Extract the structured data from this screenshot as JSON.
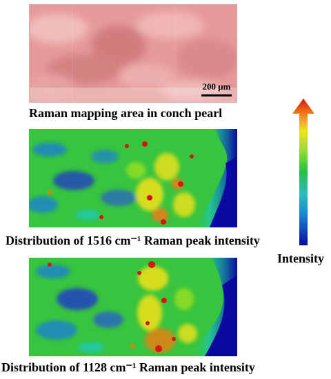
{
  "captions": {
    "pearl": "Raman mapping area in conch pearl",
    "map1516": "Distribution of 1516 cm⁻¹ Raman peak intensity",
    "map1128": "Distribution of 1128 cm⁻¹ Raman peak intensity"
  },
  "scale_bar": {
    "label": "200 μm"
  },
  "legend": {
    "label": "Intensity",
    "gradient_colors": [
      "#0a0aa0",
      "#1a7fd0",
      "#18c8c0",
      "#22c24a",
      "#9ae020",
      "#f2e21a",
      "#f07a14",
      "#d81410"
    ]
  },
  "photo_colors": {
    "base": "#e59a99",
    "light": "#f4c7c4",
    "dark": "#c96b6d"
  }
}
